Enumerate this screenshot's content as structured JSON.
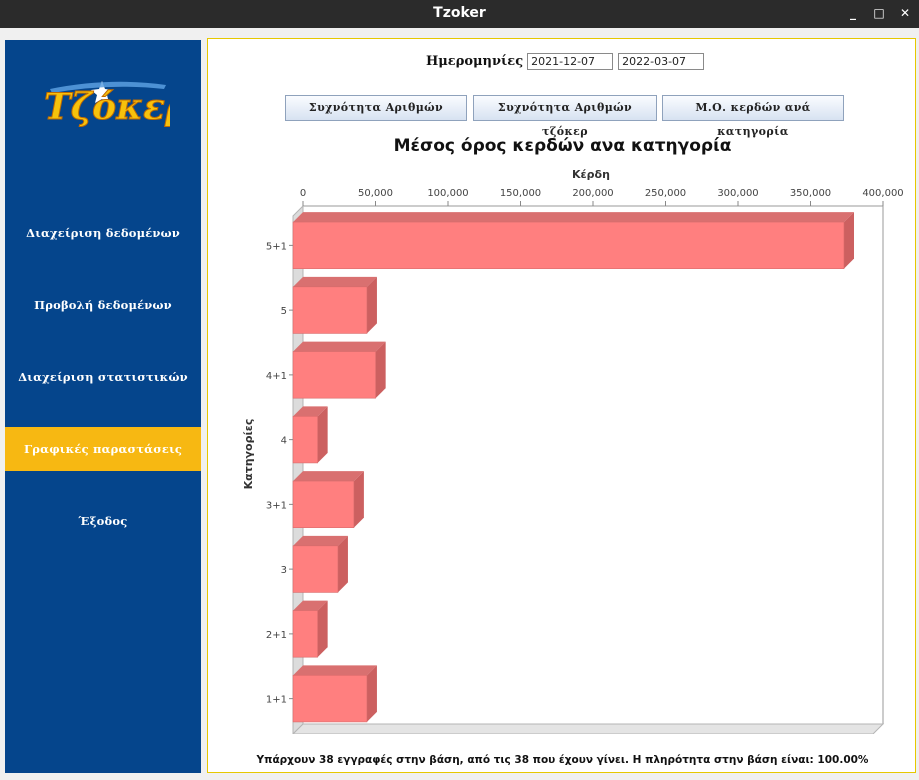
{
  "window": {
    "title": "Tzoker",
    "minimize": "_",
    "maximize": "□",
    "close": "✕"
  },
  "logo": {
    "text": "Τζόκερ"
  },
  "sidebar": {
    "items": [
      {
        "label": "Διαχείριση δεδομένων",
        "active": false
      },
      {
        "label": "Προβολή δεδομένων",
        "active": false
      },
      {
        "label": "Διαχείριση στατιστικών",
        "active": false
      },
      {
        "label": "Γραφικές παραστάσεις",
        "active": true
      },
      {
        "label": "Έξοδος",
        "active": false
      }
    ]
  },
  "filters": {
    "dates_label": "Ημερομηνίες",
    "date_from": "2021-12-07",
    "date_to": "2022-03-07"
  },
  "buttons": {
    "numbers_freq": "Συχνότητα Αριθμών",
    "tzoker_freq": "Συχνότητα Αριθμών τζόκερ",
    "avg_winnings": "Μ.Ο. κερδών ανά κατηγορία"
  },
  "chart_data": {
    "type": "bar",
    "orientation": "horizontal",
    "title": "Μέσος όρος κερδών ανα κατηγορία",
    "xlabel": "Κέρδη",
    "ylabel": "Κατηγορίες",
    "categories": [
      "5+1",
      "5",
      "4+1",
      "4",
      "3+1",
      "3",
      "2+1",
      "1+1"
    ],
    "values": [
      380000,
      51000,
      57000,
      17000,
      42000,
      31000,
      17000,
      51000
    ],
    "xlim": [
      0,
      400000
    ],
    "xticks": [
      "0",
      "50,000",
      "100,000",
      "150,000",
      "200,000",
      "250,000",
      "300,000",
      "350,000",
      "400,000"
    ],
    "axis_position": "top",
    "grid": false,
    "bar_color": "#ff7f7f",
    "bar_shade_color": "#cc6060"
  },
  "status": "Υπάρχουν 38 εγγραφές στην βάση, από τις 38 που έχουν γίνει. Η πληρότητα στην βάση είναι: 100.00%"
}
